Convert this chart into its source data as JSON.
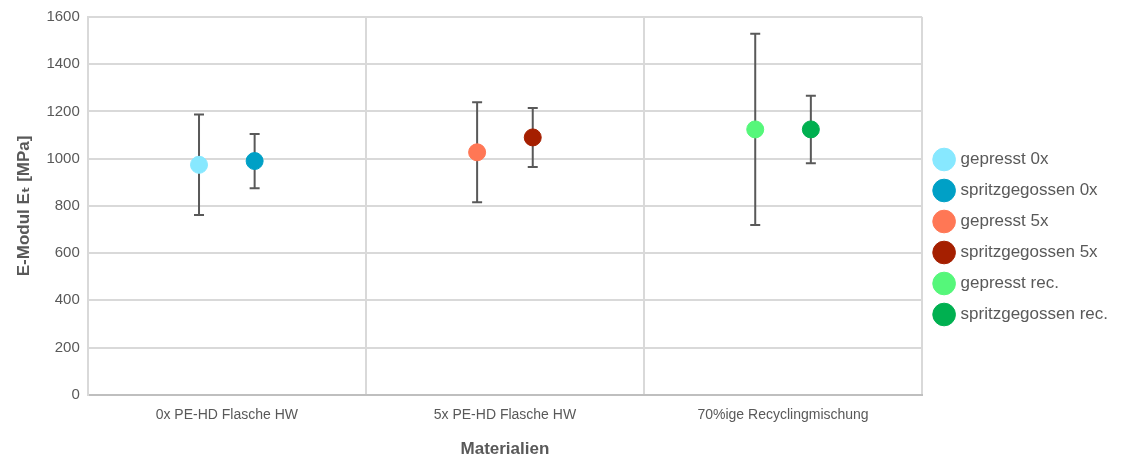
{
  "chart_data": {
    "type": "scatter",
    "xlabel": "Materialien",
    "ylabel": "E-Modul Eₜ [MPa]",
    "categories": [
      "0x PE-HD Flasche HW",
      "5x PE-HD Flasche HW",
      "70%ige Recyclingmischung"
    ],
    "ylim": [
      0,
      1600
    ],
    "yticks": [
      0,
      200,
      400,
      600,
      800,
      1000,
      1200,
      1400,
      1600
    ],
    "grid": true,
    "legend": "right",
    "marker": "circle",
    "series": [
      {
        "name": "gepresst 0x",
        "color": "#87e8ff",
        "values": [
          974,
          null,
          null
        ],
        "errors": [
          213,
          null,
          null
        ]
      },
      {
        "name": "spritzgegossen 0x",
        "color": "#00a0c6",
        "values": [
          990,
          null,
          null
        ],
        "errors": [
          115,
          null,
          null
        ]
      },
      {
        "name": "gepresst 5x",
        "color": "#ff7755",
        "values": [
          null,
          1027,
          null
        ],
        "errors": [
          null,
          212,
          null
        ]
      },
      {
        "name": "spritzgegossen 5x",
        "color": "#a51f00",
        "values": [
          null,
          1090,
          null
        ],
        "errors": [
          null,
          125,
          null
        ]
      },
      {
        "name": "gepresst rec.",
        "color": "#55f77a",
        "values": [
          null,
          null,
          1124
        ],
        "errors": [
          null,
          null,
          405
        ]
      },
      {
        "name": "spritzgegossen rec.",
        "color": "#00b050",
        "values": [
          null,
          null,
          1124
        ],
        "errors": [
          null,
          null,
          143
        ]
      }
    ]
  }
}
